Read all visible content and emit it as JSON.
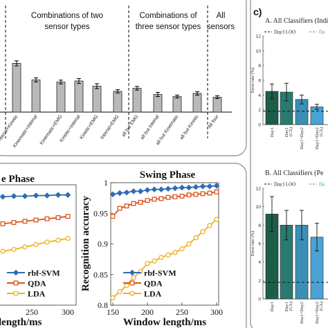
{
  "top_panel": {
    "group_labels": [
      {
        "lines": [
          "Combinations of two",
          "sensor types"
        ]
      },
      {
        "lines": [
          "Combinations of",
          "three sensor types"
        ]
      },
      {
        "lines": [
          "All",
          "sensors"
        ]
      }
    ],
    "chart_data": {
      "type": "bar",
      "categories": [
        "Interial+Kinetic",
        "Kinematic+Interial",
        "Kinematic+EMG",
        "Kinetic+Interial",
        "Kinetic+EMG",
        "Interial+EMG",
        "all but EMG",
        "all but Interial",
        "all but Kinematic",
        "all but Kinetic",
        "All four"
      ],
      "values": [
        2.35,
        1.55,
        1.45,
        1.5,
        1.25,
        1.0,
        1.15,
        0.85,
        0.75,
        0.9,
        0.72
      ],
      "errors": [
        0.12,
        0.1,
        0.09,
        0.12,
        0.12,
        0.08,
        0.09,
        0.1,
        0.07,
        0.08,
        0.07
      ],
      "bar_color": "#b9b9b9"
    }
  },
  "swing_panel": {
    "chart_data": {
      "type": "line",
      "title": "Swing Phase",
      "xlabel": "Window length/ms",
      "ylabel": "Recognition accuracy",
      "xlim": [
        150,
        300
      ],
      "ylim": [
        0.8,
        1.0
      ],
      "xticks": [
        "150",
        "200",
        "250",
        "300"
      ],
      "yticks": [
        "0.8",
        "0.85",
        "0.9",
        "0.95",
        "1"
      ],
      "x": [
        150,
        160,
        170,
        180,
        190,
        200,
        210,
        220,
        230,
        240,
        250,
        260,
        270,
        280,
        290,
        300
      ],
      "series": [
        {
          "name": "rbf-SVM",
          "color": "#2e6db5",
          "marker": "diamond",
          "values": [
            0.981,
            0.983,
            0.984,
            0.986,
            0.986,
            0.988,
            0.989,
            0.989,
            0.99,
            0.991,
            0.992,
            0.992,
            0.993,
            0.994,
            0.994,
            0.995
          ]
        },
        {
          "name": "QDA",
          "color": "#d95319",
          "marker": "square",
          "values": [
            0.945,
            0.958,
            0.962,
            0.966,
            0.968,
            0.971,
            0.973,
            0.974,
            0.976,
            0.977,
            0.978,
            0.98,
            0.981,
            0.982,
            0.983,
            0.985
          ]
        },
        {
          "name": "LDA",
          "color": "#edb120",
          "marker": "circle",
          "values": [
            0.812,
            0.822,
            0.832,
            0.845,
            0.855,
            0.868,
            0.872,
            0.878,
            0.882,
            0.886,
            0.892,
            0.9,
            0.91,
            0.92,
            0.93,
            0.94
          ]
        }
      ]
    }
  },
  "stance_panel": {
    "title_fragment": "e Phase",
    "xlabel_fragment": "length/ms",
    "xticks": [
      "250",
      "300"
    ],
    "series": [
      {
        "name": "rbf-SVM",
        "color": "#2e6db5",
        "marker": "diamond",
        "values": [
          0.977,
          0.978,
          0.978,
          0.979,
          0.979,
          0.98,
          0.98
        ]
      },
      {
        "name": "QDA",
        "color": "#d95319",
        "marker": "square",
        "values": [
          0.933,
          0.935,
          0.937,
          0.939,
          0.941,
          0.943,
          0.945
        ]
      },
      {
        "name": "LDA",
        "color": "#edb120",
        "marker": "circle",
        "values": [
          0.888,
          0.891,
          0.895,
          0.899,
          0.903,
          0.906,
          0.909
        ]
      }
    ]
  },
  "right_panel": {
    "label": "c)",
    "chart_a": {
      "title": "A. All Classifiers (Indi",
      "ylabel": "Error rate (%)",
      "ylim": [
        0,
        12
      ],
      "yticks": [
        "0",
        "2",
        "4",
        "6",
        "8",
        "10",
        "12"
      ],
      "legend": [
        "Day3 LOO",
        "Da"
      ],
      "categories": [
        [
          "Day1"
        ],
        [
          "Day1",
          "(CA)"
        ],
        [
          "Day1+Day2"
        ],
        [
          "Day1+Day2",
          "(CA)"
        ]
      ],
      "values": [
        4.5,
        4.4,
        3.4,
        2.4
      ],
      "errors": [
        1.0,
        1.2,
        0.6,
        0.35
      ],
      "colors": [
        "#1d5e4a",
        "#2b7a72",
        "#3b8fb5",
        "#4aa3d4"
      ],
      "dashed_level": 1.8
    },
    "chart_b": {
      "title": "B. All Classifiers (Pe",
      "ylabel": "Error rate (%)",
      "ylim": [
        0,
        12
      ],
      "yticks": [
        "0",
        "2",
        "4",
        "6",
        "8",
        "10",
        "12"
      ],
      "legend": [
        "Day3 LOO",
        "Da"
      ],
      "categories": [
        [
          "Day1"
        ],
        [
          "Day1",
          "(CA)"
        ],
        [
          "Day1+Day2"
        ],
        [
          "Day1+Day2",
          "(CA)"
        ]
      ],
      "values": [
        9.2,
        8.0,
        8.0,
        6.7
      ],
      "errors": [
        1.9,
        1.6,
        1.6,
        1.5
      ],
      "colors": [
        "#1d5e4a",
        "#2b7a72",
        "#3b8fb5",
        "#4aa3d4"
      ],
      "dashed_level": 1.8
    }
  }
}
